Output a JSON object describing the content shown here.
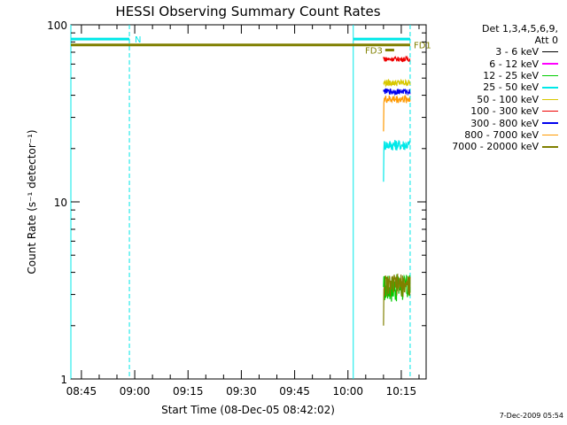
{
  "chart_data": {
    "type": "line",
    "title": "HESSI Observing Summary Count Rates",
    "xlabel": "Start Time (08-Dec-05 08:42:02)",
    "ylabel": "Count Rate (s⁻¹ detector⁻¹)",
    "yscale": "log",
    "xlim": [
      "08:42:02",
      "10:22:00"
    ],
    "ylim": [
      1,
      100
    ],
    "x_ticks": [
      "08:45",
      "09:00",
      "09:15",
      "09:30",
      "09:45",
      "10:00",
      "10:15"
    ],
    "y_ticks": [
      "1",
      "10",
      "100"
    ],
    "grid": false,
    "legend": {
      "placement": "right",
      "heading": [
        "Det 1,3,4,5,6,9,",
        "Att 0"
      ],
      "entries": [
        {
          "label": "3 - 6 keV",
          "color": "#000000"
        },
        {
          "label": "6 - 12 keV",
          "color": "#ff00ff"
        },
        {
          "label": "12 - 25 keV",
          "color": "#00cc00"
        },
        {
          "label": "25 - 50 keV",
          "color": "#00e8e8"
        },
        {
          "label": "50 - 100 keV",
          "color": "#d8c800"
        },
        {
          "label": "100 - 300 keV",
          "color": "#ee0000"
        },
        {
          "label": "300 - 800 keV",
          "color": "#0000ee"
        },
        {
          "label": "800 - 7000 keV",
          "color": "#ff9900"
        },
        {
          "label": "7000 - 20000 keV",
          "color": "#808000"
        }
      ]
    },
    "flag_bars": [
      {
        "label": "N",
        "color": "#00e8e8",
        "x_start": "08:42:02",
        "x_end": "08:58:30",
        "y": 83
      },
      {
        "label": "",
        "color": "#00e8e8",
        "x_start": "10:01:30",
        "x_end": "10:17:30",
        "y": 83
      },
      {
        "label": "FD1",
        "color": "#808000",
        "x_start": "08:42:02",
        "x_end": "10:17:30",
        "y": 77
      },
      {
        "label": "FD3",
        "color": "#808000",
        "x_start": "10:10:30",
        "x_end": "10:13:00",
        "y": 72
      }
    ],
    "markers": [
      {
        "x": "08:42:02",
        "style": "solid",
        "color": "#00e8e8"
      },
      {
        "x": "08:58:30",
        "style": "dashed",
        "color": "#00e8e8"
      },
      {
        "x": "10:01:30",
        "style": "solid",
        "color": "#00e8e8"
      },
      {
        "x": "10:17:30",
        "style": "dashed",
        "color": "#00e8e8"
      }
    ],
    "x_start": "10:10:00",
    "x_end": "10:17:30",
    "series": [
      {
        "name": "12 - 25 keV",
        "color": "#00cc00",
        "base": 3.3,
        "noise": 0.6,
        "start_value": 3.3
      },
      {
        "name": "25 - 50 keV",
        "color": "#00e8e8",
        "base": 21,
        "noise": 1.5,
        "start_value": 13
      },
      {
        "name": "50 - 100 keV",
        "color": "#d8c800",
        "base": 47,
        "noise": 2,
        "start_value": 47
      },
      {
        "name": "100 - 300 keV",
        "color": "#ee0000",
        "base": 64,
        "noise": 2,
        "start_value": 66
      },
      {
        "name": "300 - 800 keV",
        "color": "#0000ee",
        "base": 42,
        "noise": 1.5,
        "start_value": 42
      },
      {
        "name": "800 - 7000 keV",
        "color": "#ff9900",
        "base": 38,
        "noise": 2,
        "start_value": 25
      },
      {
        "name": "7000 - 20000 keV",
        "color": "#808000",
        "base": 3.4,
        "noise": 0.5,
        "start_value": 2
      }
    ]
  },
  "footer": {
    "timestamp": "7-Dec-2009 05:54"
  }
}
